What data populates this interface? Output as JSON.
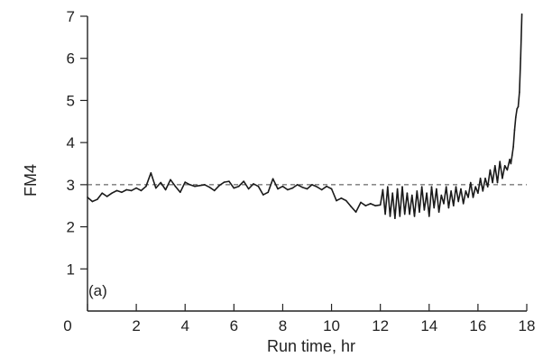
{
  "chart_data": {
    "type": "line",
    "title": "",
    "xlabel": "Run time, hr",
    "ylabel": "FM4",
    "panel_label": "(a)",
    "xlim": [
      0,
      18
    ],
    "ylim": [
      0,
      7
    ],
    "xticks": [
      0,
      2,
      4,
      6,
      8,
      10,
      12,
      14,
      16,
      18
    ],
    "yticks": [
      0,
      1,
      2,
      3,
      4,
      5,
      6,
      7
    ],
    "grid": false,
    "reference_line": {
      "y": 3.0,
      "style": "dashed"
    },
    "series": [
      {
        "x": [
          0.0,
          0.2,
          0.4,
          0.6,
          0.8,
          1.0,
          1.2,
          1.4,
          1.6,
          1.8,
          2.0,
          2.2,
          2.4,
          2.6,
          2.8,
          3.0,
          3.2,
          3.4,
          3.6,
          3.8,
          4.0,
          4.2,
          4.4,
          4.6,
          4.8,
          5.0,
          5.2,
          5.4,
          5.6,
          5.8,
          6.0,
          6.2,
          6.4,
          6.6,
          6.8,
          7.0,
          7.2,
          7.4,
          7.6,
          7.8,
          8.0,
          8.2,
          8.4,
          8.6,
          8.8,
          9.0,
          9.2,
          9.4,
          9.6,
          9.8,
          10.0,
          10.2,
          10.4,
          10.6,
          10.8,
          11.0,
          11.2,
          11.4,
          11.6,
          11.8,
          12.0,
          12.1,
          12.2,
          12.3,
          12.4,
          12.5,
          12.6,
          12.7,
          12.8,
          12.9,
          13.0,
          13.1,
          13.2,
          13.3,
          13.4,
          13.5,
          13.6,
          13.7,
          13.8,
          13.9,
          14.0,
          14.1,
          14.2,
          14.3,
          14.4,
          14.5,
          14.6,
          14.7,
          14.8,
          14.9,
          15.0,
          15.1,
          15.2,
          15.3,
          15.4,
          15.5,
          15.6,
          15.7,
          15.8,
          15.9,
          16.0,
          16.1,
          16.2,
          16.3,
          16.4,
          16.5,
          16.6,
          16.7,
          16.8,
          16.9,
          17.0,
          17.1,
          17.2,
          17.3,
          17.35,
          17.4,
          17.45,
          17.5,
          17.55,
          17.6,
          17.65,
          17.7,
          17.75,
          17.8
        ],
        "y": [
          2.7,
          2.6,
          2.65,
          2.8,
          2.72,
          2.8,
          2.86,
          2.82,
          2.88,
          2.86,
          2.92,
          2.86,
          2.96,
          3.28,
          2.92,
          3.05,
          2.88,
          3.12,
          2.96,
          2.82,
          3.06,
          3.0,
          2.96,
          2.98,
          3.0,
          2.94,
          2.86,
          2.98,
          3.06,
          3.08,
          2.92,
          2.96,
          3.08,
          2.9,
          3.02,
          2.96,
          2.76,
          2.82,
          3.14,
          2.9,
          2.96,
          2.88,
          2.92,
          3.0,
          2.94,
          2.9,
          3.0,
          2.95,
          2.88,
          2.96,
          2.9,
          2.62,
          2.68,
          2.62,
          2.48,
          2.35,
          2.58,
          2.5,
          2.55,
          2.5,
          2.52,
          2.88,
          2.3,
          2.95,
          2.25,
          2.8,
          2.2,
          2.9,
          2.25,
          2.95,
          2.3,
          2.8,
          2.3,
          2.75,
          2.25,
          2.85,
          2.35,
          2.95,
          2.4,
          2.8,
          2.25,
          2.95,
          2.45,
          2.9,
          2.35,
          2.75,
          2.55,
          2.95,
          2.45,
          2.85,
          2.5,
          2.95,
          2.6,
          2.9,
          2.55,
          2.85,
          2.7,
          3.05,
          2.7,
          2.95,
          2.8,
          3.15,
          2.85,
          3.15,
          2.95,
          3.35,
          3.05,
          3.45,
          3.05,
          3.55,
          3.15,
          3.45,
          3.35,
          3.6,
          3.5,
          3.7,
          3.9,
          4.3,
          4.6,
          4.8,
          4.85,
          5.2,
          6.0,
          7.05
        ]
      }
    ]
  }
}
